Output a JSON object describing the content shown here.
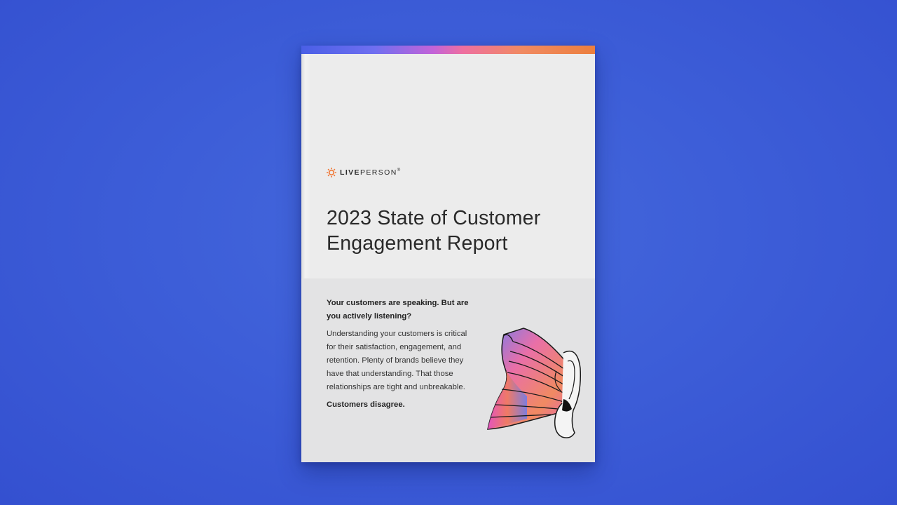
{
  "brand": {
    "name_bold": "LIVE",
    "name_light": "PERSON",
    "registered": "®",
    "logo_icon": "sun-burst-icon",
    "accent_color": "#f07a3a"
  },
  "cover": {
    "title_lines": [
      "2023 State of Customer",
      "Engagement Report"
    ],
    "lead_lines": [
      "Your customers are speaking. But are",
      "you actively listening?"
    ],
    "body_lines": [
      "Understanding your customers is critical",
      "for their satisfaction, engagement, and",
      "retention. Plenty of brands believe they",
      "have that understanding. That those",
      "relationships are tight and unbreakable."
    ],
    "closing": "Customers disagree.",
    "illustration": "ear-listening-illustration"
  },
  "colors": {
    "background": "#3d5ed8",
    "cover": "#ececec",
    "panel": "#e3e3e4",
    "gradient_stops": [
      "#4a5fe6",
      "#c363d8",
      "#ee6fa0",
      "#ec7f3e"
    ]
  }
}
